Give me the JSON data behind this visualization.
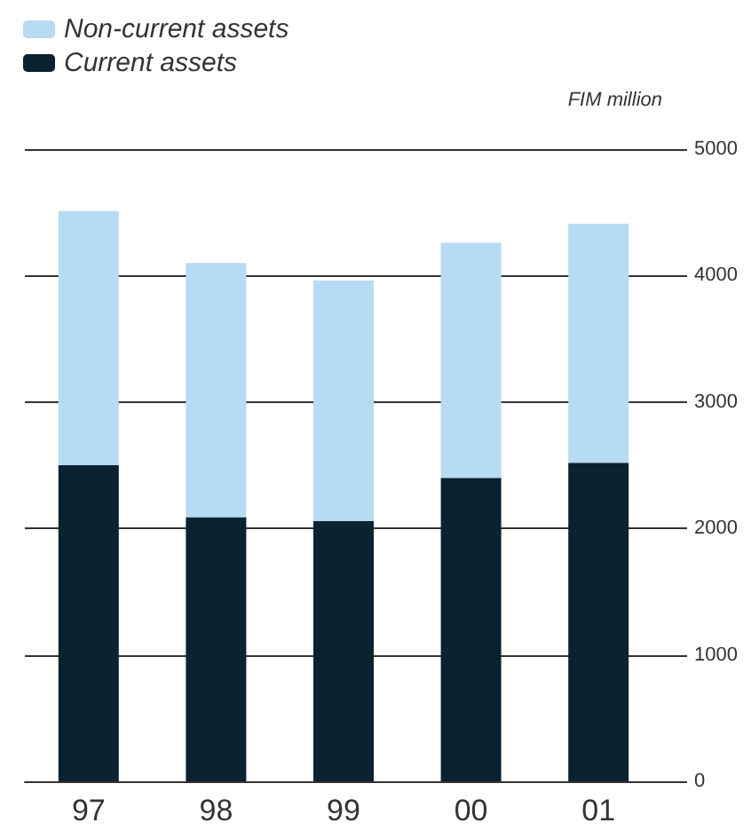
{
  "chart_data": {
    "type": "bar",
    "stacked": true,
    "ylabel": "FIM million",
    "categories": [
      "97",
      "98",
      "99",
      "00",
      "01"
    ],
    "series": [
      {
        "name": "Current assets",
        "color": "#0b2230",
        "values": [
          2500,
          2090,
          2060,
          2400,
          2520
        ]
      },
      {
        "name": "Non-current assets",
        "color": "#b7dbf2",
        "values": [
          2010,
          2010,
          1900,
          1860,
          1890
        ]
      }
    ],
    "ylim": [
      0,
      5000
    ],
    "yticks": [
      0,
      1000,
      2000,
      3000,
      4000,
      5000
    ],
    "grid": "y",
    "legend": "top left"
  }
}
